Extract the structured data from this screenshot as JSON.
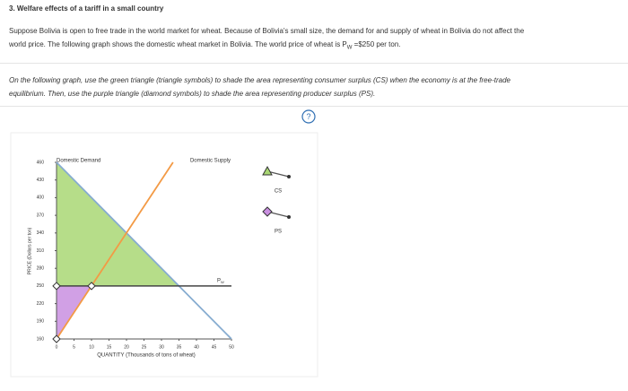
{
  "header": {
    "title": "3. Welfare effects of a tariff in a small country"
  },
  "intro": {
    "before": "Suppose Bolivia is open to free trade in the world market for wheat. Because of Bolivia's small size, the demand for and supply of wheat in Bolivia do not affect the world price. The following graph shows the domestic wheat market in Bolivia. The world price of wheat is P",
    "sub": "W",
    "after": " =$250 per ton."
  },
  "instructions": "On the following graph, use the green triangle (triangle symbols) to shade the area representing consumer surplus (CS) when the economy is at the free-trade equilibrium. Then, use the purple triangle (diamond symbols) to shade the area representing producer surplus (PS).",
  "help_icon": "?",
  "chart_data": {
    "type": "line",
    "x_label": "QUANTITY (Thousands of tons of wheat)",
    "y_label": "PRICE (Dollars per ton)",
    "xlim": [
      0,
      50
    ],
    "ylim": [
      160,
      460
    ],
    "xticks": [
      0,
      5,
      10,
      15,
      20,
      25,
      30,
      35,
      40,
      45,
      50
    ],
    "yticks": [
      160,
      190,
      220,
      250,
      280,
      310,
      340,
      370,
      400,
      430,
      460
    ],
    "series": [
      {
        "name": "Domestic Demand",
        "color": "#86acd0",
        "x": [
          0,
          50
        ],
        "values": [
          460,
          160
        ]
      },
      {
        "name": "Domestic Supply",
        "color": "#f39a45",
        "x": [
          0,
          33.3
        ],
        "values": [
          160,
          460
        ]
      },
      {
        "name": "P",
        "name_sub": "W",
        "color": "#444444",
        "x": [
          0,
          50
        ],
        "values": [
          250,
          250
        ]
      }
    ],
    "areas": [
      {
        "name": "CS",
        "color": "#a9d774",
        "marker": "triangle",
        "x": [
          0,
          0,
          35
        ],
        "values": [
          460,
          250,
          250
        ]
      },
      {
        "name": "PS",
        "color": "#c98fe0",
        "marker": "diamond",
        "x": [
          0,
          0,
          10
        ],
        "values": [
          250,
          160,
          250
        ]
      }
    ]
  }
}
